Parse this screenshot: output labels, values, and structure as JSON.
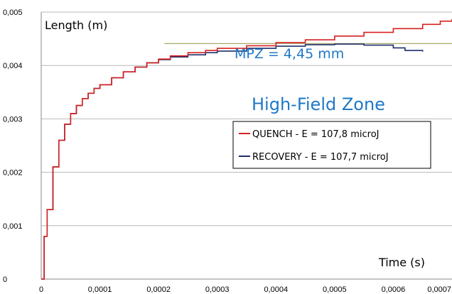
{
  "chart_data": {
    "type": "line",
    "ylabel": "Length (m)",
    "xlabel": "Time (s)",
    "xlim": [
      0,
      0.0007
    ],
    "ylim": [
      0,
      0.005
    ],
    "x_ticks": [
      "0",
      "0,0001",
      "0,0002",
      "0,0003",
      "0,0004",
      "0,0005",
      "0,0006",
      "0,0007"
    ],
    "y_ticks": [
      "0",
      "0,001",
      "0,002",
      "0,003",
      "0,004",
      "0,005"
    ],
    "grid": "horizontal",
    "legend_position": "right-middle",
    "series": [
      {
        "name": "QUENCH - E = 107,8 microJ",
        "color": "#d62020",
        "x": [
          0,
          5e-06,
          1e-05,
          2e-05,
          3e-05,
          4e-05,
          5e-05,
          6e-05,
          7e-05,
          8e-05,
          9e-05,
          0.0001,
          0.00012,
          0.00014,
          0.00016,
          0.00018,
          0.0002,
          0.00022,
          0.00025,
          0.00028,
          0.0003,
          0.00035,
          0.0004,
          0.00045,
          0.0005,
          0.00055,
          0.0006,
          0.00065,
          0.00068,
          0.0007
        ],
        "y": [
          0,
          0.0008,
          0.0013,
          0.0021,
          0.0026,
          0.0029,
          0.0031,
          0.00325,
          0.00338,
          0.00348,
          0.00357,
          0.00364,
          0.00377,
          0.00388,
          0.00397,
          0.00405,
          0.00412,
          0.00418,
          0.00424,
          0.00428,
          0.00432,
          0.00437,
          0.00443,
          0.00448,
          0.00455,
          0.00462,
          0.00469,
          0.00477,
          0.00483,
          0.00487
        ]
      },
      {
        "name": "RECOVERY - E = 107,7 microJ",
        "color": "#1f2f6b",
        "x": [
          0,
          5e-06,
          1e-05,
          2e-05,
          3e-05,
          4e-05,
          5e-05,
          6e-05,
          7e-05,
          8e-05,
          9e-05,
          0.0001,
          0.00012,
          0.00014,
          0.00016,
          0.00018,
          0.0002,
          0.00022,
          0.00025,
          0.00028,
          0.0003,
          0.00035,
          0.0004,
          0.00045,
          0.0005,
          0.00055,
          0.0006,
          0.00062,
          0.00065
        ],
        "y": [
          0,
          0.0008,
          0.0013,
          0.0021,
          0.0026,
          0.0029,
          0.0031,
          0.00325,
          0.00338,
          0.00348,
          0.00357,
          0.00364,
          0.00377,
          0.00388,
          0.00397,
          0.00405,
          0.00411,
          0.00416,
          0.0042,
          0.00424,
          0.00427,
          0.00432,
          0.00436,
          0.00439,
          0.0044,
          0.00438,
          0.00433,
          0.00428,
          0.00426
        ]
      }
    ],
    "reference_line": {
      "y": 0.00441,
      "x_start": 0.00021,
      "x_end": 0.0007,
      "color": "#a8a86a"
    },
    "annotations": [
      "MPZ = 4,45 mm",
      "High-Field Zone"
    ]
  }
}
